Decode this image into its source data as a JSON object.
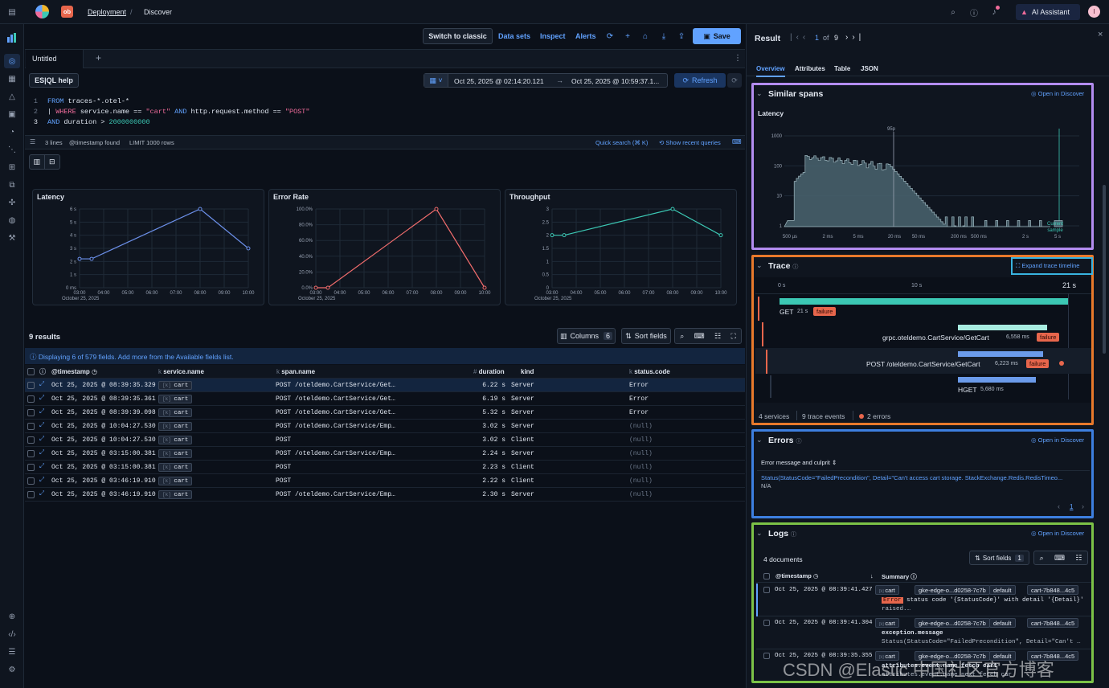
{
  "topbar": {
    "logo_badge": "ob",
    "breadcrumb": [
      "Deployment",
      "Discover"
    ],
    "ai_assistant": "AI Assistant",
    "avatar": "I"
  },
  "toolbar": {
    "switch_classic": "Switch to classic",
    "data_sets": "Data sets",
    "inspect": "Inspect",
    "alerts": "Alerts",
    "save": "Save"
  },
  "tabs": {
    "active": "Untitled",
    "add": "+"
  },
  "query": {
    "help": "ES|QL help",
    "time_from": "Oct 25, 2025 @ 02:14:20.121",
    "arrow": "→",
    "time_to": "Oct 25, 2025 @ 10:59:37.1...",
    "refresh": "Refresh",
    "lines": [
      {
        "n": "1",
        "parts": [
          [
            "kw",
            "FROM"
          ],
          [
            "plain",
            " traces-*.otel-*"
          ]
        ]
      },
      {
        "n": "2",
        "parts": [
          [
            "plain",
            "| "
          ],
          [
            "kw2",
            "WHERE"
          ],
          [
            "plain",
            " service.name == "
          ],
          [
            "str",
            "\"cart\""
          ],
          [
            "kw",
            " AND"
          ],
          [
            "plain",
            " http.request.method == "
          ],
          [
            "str",
            "\"POST\""
          ]
        ]
      },
      {
        "n": "3",
        "parts": [
          [
            "kw",
            "AND"
          ],
          [
            "plain",
            " duration > "
          ],
          [
            "num",
            "2000000000"
          ]
        ]
      }
    ],
    "status": {
      "lines": "3 lines",
      "ts": "@timestamp found",
      "limit": "LIMIT 1000 rows",
      "quick": "Quick search (⌘ K)",
      "recent": "Show recent queries"
    }
  },
  "charts": [
    {
      "title": "Latency",
      "yticks": [
        "6 s",
        "5 s",
        "4 s",
        "3 s",
        "2 s",
        "1 s",
        "0 ms"
      ],
      "ymax": 6,
      "values": [
        2.2,
        2.2,
        null,
        null,
        null,
        6,
        3
      ],
      "color": "#6b8fe8"
    },
    {
      "title": "Error Rate",
      "yticks": [
        "100.0%",
        "80.0%",
        "60.0%",
        "40.0%",
        "20.0%",
        "0.0%"
      ],
      "ymax": 100,
      "values": [
        0,
        0,
        null,
        null,
        null,
        100,
        0
      ],
      "color": "#f06c6c"
    },
    {
      "title": "Throughput",
      "yticks": [
        "3",
        "2.5",
        "2",
        "1.5",
        "1",
        "0.5",
        "0"
      ],
      "ymax": 3,
      "values": [
        2,
        2,
        null,
        null,
        null,
        3,
        2
      ],
      "color": "#3cc8b4"
    }
  ],
  "chart_x": {
    "ticks": [
      "03:00",
      "04:00",
      "05:00",
      "06:00",
      "07:00",
      "08:00",
      "09:00",
      "10:00"
    ],
    "date": "October 25, 2025"
  },
  "results": {
    "count": "9 results",
    "columns": "Columns",
    "columns_n": "6",
    "sort": "Sort fields",
    "info": "Displaying 6 of 579 fields. Add more from the Available fields list.",
    "headers": [
      "@timestamp",
      "service.name",
      "span.name",
      "duration",
      "kind",
      "status.code"
    ],
    "rows": [
      [
        "Oct 25, 2025 @ 08:39:35.329",
        "cart",
        "POST /oteldemo.CartService/Get…",
        "6.22 s",
        "Server",
        "Error"
      ],
      [
        "Oct 25, 2025 @ 08:39:35.361",
        "cart",
        "POST /oteldemo.CartService/Get…",
        "6.19 s",
        "Server",
        "Error"
      ],
      [
        "Oct 25, 2025 @ 08:39:39.098",
        "cart",
        "POST /oteldemo.CartService/Get…",
        "5.32 s",
        "Server",
        "Error"
      ],
      [
        "Oct 25, 2025 @ 10:04:27.530",
        "cart",
        "POST /oteldemo.CartService/Emp…",
        "3.02 s",
        "Server",
        "(null)"
      ],
      [
        "Oct 25, 2025 @ 10:04:27.530",
        "cart",
        "POST",
        "3.02 s",
        "Client",
        "(null)"
      ],
      [
        "Oct 25, 2025 @ 03:15:00.381",
        "cart",
        "POST /oteldemo.CartService/Emp…",
        "2.24 s",
        "Server",
        "(null)"
      ],
      [
        "Oct 25, 2025 @ 03:15:00.381",
        "cart",
        "POST",
        "2.23 s",
        "Client",
        "(null)"
      ],
      [
        "Oct 25, 2025 @ 03:46:19.910",
        "cart",
        "POST",
        "2.22 s",
        "Client",
        "(null)"
      ],
      [
        "Oct 25, 2025 @ 03:46:19.910",
        "cart",
        "POST /oteldemo.CartService/Emp…",
        "2.30 s",
        "Server",
        "(null)"
      ]
    ]
  },
  "panel": {
    "title": "Result",
    "page": "1",
    "of": "of",
    "total": "9",
    "tabs": [
      "Overview",
      "Attributes",
      "Table",
      "JSON"
    ],
    "similar": {
      "title": "Similar spans",
      "open": "Open in Discover",
      "latency": "Latency",
      "p95": "95p",
      "yticks": [
        "1000",
        "100",
        "10",
        "1"
      ],
      "xticks": [
        "500 µs",
        "2 ms",
        "5 ms",
        "20 ms",
        "50 ms",
        "200 ms",
        "500 ms",
        "2 s",
        "5 s"
      ],
      "current": "Current sample"
    },
    "trace": {
      "title": "Trace",
      "expand": "Expand trace timeline",
      "scale": [
        "0 s",
        "10 s",
        "21 s"
      ],
      "spans": [
        {
          "name": "GET",
          "dur": "21 s",
          "status": "failure"
        },
        {
          "name": "grpc.oteldemo.CartService/GetCart",
          "dur": "6,558 ms",
          "status": "failure"
        },
        {
          "name": "POST /oteldemo.CartService/GetCart",
          "dur": "6,223 ms",
          "status": "failure"
        },
        {
          "name": "HGET",
          "dur": "5,680 ms",
          "status": ""
        }
      ],
      "services": "4 services",
      "events": "9 trace events",
      "errors": "2 errors"
    },
    "errors": {
      "title": "Errors",
      "open": "Open in Discover",
      "col": "Error message and culprit",
      "msg": "Status(StatusCode=\"FailedPrecondition\", Detail=\"Can't access cart storage. StackExchange.Redis.RedisTimeo...",
      "culprit": "N/A",
      "page": "1"
    },
    "logs": {
      "title": "Logs",
      "open": "Open in Discover",
      "docs": "4 documents",
      "sort": "Sort fields",
      "sort_n": "1",
      "ts": "@timestamp",
      "summary": "Summary",
      "rows": [
        {
          "ts": "Oct 25, 2025 @ 08:39:41.427",
          "chips": [
            "cart",
            "gke-edge-o...d0258-7c7b",
            "default",
            "cart-7b848...4c5"
          ],
          "l1a": "Error",
          "l1b": " status code '{StatusCode}' with detail '{Detail}'",
          "l2": "raised.…"
        },
        {
          "ts": "Oct 25, 2025 @ 08:39:41.304",
          "chips": [
            "cart",
            "gke-edge-o...d0258-7c7b",
            "default",
            "cart-7b848...4c5"
          ],
          "l1a": "",
          "l1b": "exception.message",
          "l2": "Status(StatusCode=\"FailedPrecondition\", Detail=\"Can't …"
        },
        {
          "ts": "Oct 25, 2025 @ 08:39:35.355",
          "chips": [
            "cart",
            "gke-edge-o...d0258-7c7b",
            "default",
            "cart-7b848...4c5"
          ],
          "l1a": "",
          "l1b": "attributes.event.name  fetch cart",
          "l2": "attributes.event.name  next fetch car"
        }
      ]
    },
    "watermark": "CSDN @Elastic 中国社区官方博客"
  }
}
